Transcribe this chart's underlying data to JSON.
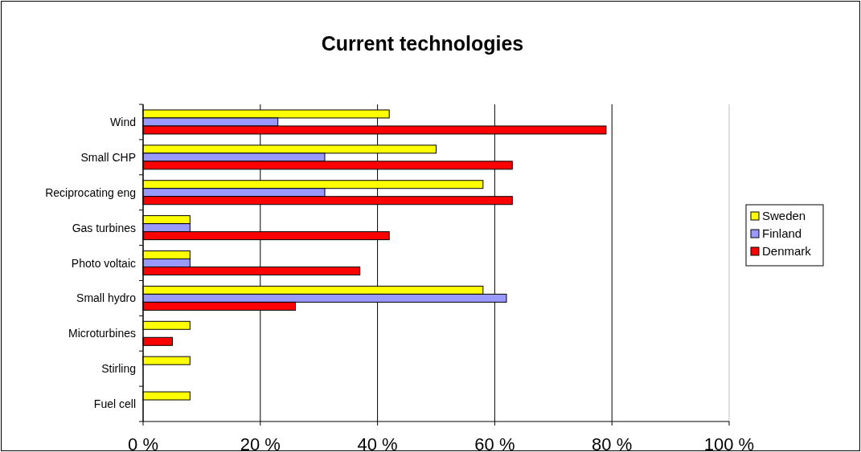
{
  "chart_data": {
    "type": "bar",
    "orientation": "horizontal",
    "title": "Current technologies",
    "categories": [
      "Wind",
      "Small CHP",
      "Reciprocating eng",
      "Gas turbines",
      "Photo voltaic",
      "Small hydro",
      "Microturbines",
      "Stirling",
      "Fuel cell"
    ],
    "series": [
      {
        "name": "Sweden",
        "color": "#ffff00",
        "values": [
          42,
          50,
          58,
          8,
          8,
          58,
          8,
          8,
          8
        ]
      },
      {
        "name": "Finland",
        "color": "#9999ff",
        "values": [
          23,
          31,
          31,
          8,
          8,
          62,
          0,
          0,
          0
        ]
      },
      {
        "name": "Denmark",
        "color": "#ff0000",
        "values": [
          79,
          63,
          63,
          42,
          37,
          26,
          5,
          0,
          0
        ]
      }
    ],
    "xlim": [
      0,
      100
    ],
    "xticks": [
      {
        "value": 0,
        "label": "0 %"
      },
      {
        "value": 20,
        "label": "20 %"
      },
      {
        "value": 40,
        "label": "40 %"
      },
      {
        "value": 60,
        "label": "60 %"
      },
      {
        "value": 80,
        "label": "80 %"
      },
      {
        "value": 100,
        "label": "100 %"
      }
    ],
    "grid": "x",
    "legend": "right"
  }
}
